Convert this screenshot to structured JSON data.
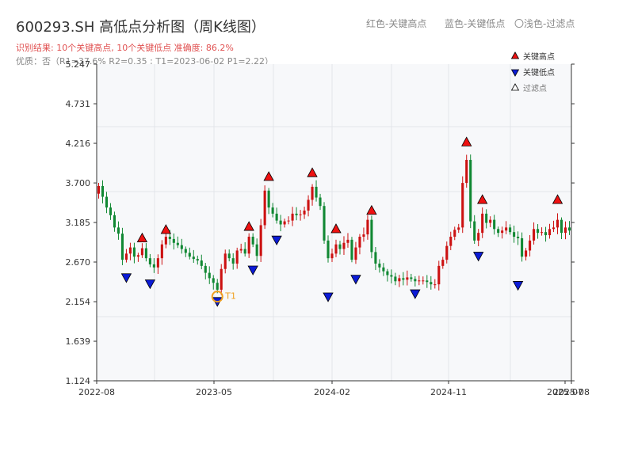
{
  "header": {
    "title": "600293.SH 高低点分析图（周K线图）",
    "subtitle": "识别结果: 10个关键高点, 10个关键低点   准确度: 86.2%",
    "quality": "优质：否（R1=37.6%  R2=0.35 ; T1=2023-06-02 P1=2.22）",
    "legend_red": "红色-关键高点",
    "legend_blue": "蓝色-关键低点",
    "legend_light": "〇浅色-过滤点"
  },
  "colors": {
    "up": "#cc1111",
    "down": "#118833",
    "high_marker": "#ee1111",
    "low_marker": "#0b1bd6",
    "t1_marker": "#f0a020",
    "plot_bg": "#f7f8fa",
    "grid": "#e3e6ea"
  },
  "chart_data": {
    "type": "candlestick",
    "interval": "weekly",
    "y_axis": {
      "ticks": [
        "1.124",
        "1.639",
        "2.154",
        "2.670",
        "3.185",
        "3.700",
        "4.216",
        "4.731",
        "5.247"
      ],
      "ylim": [
        1.124,
        5.247
      ]
    },
    "x_axis": {
      "ticks": [
        "2022-08",
        "2023-05",
        "2024-02",
        "2024-11",
        "2025-07",
        "2025-08"
      ]
    },
    "legend": {
      "position": "top-right",
      "items": [
        {
          "label": "关键高点",
          "marker": "triangle-up",
          "color": "red"
        },
        {
          "label": "关键低点",
          "marker": "triangle-down",
          "color": "blue"
        },
        {
          "label": "过滤点",
          "marker": "triangle-up-hollow",
          "color": "light"
        }
      ]
    },
    "key_highs": [
      {
        "week": 11,
        "price": 2.88
      },
      {
        "week": 17,
        "price": 2.99
      },
      {
        "week": 38,
        "price": 3.03
      },
      {
        "week": 43,
        "price": 3.68
      },
      {
        "week": 54,
        "price": 3.73
      },
      {
        "week": 60,
        "price": 3.0
      },
      {
        "week": 69,
        "price": 3.24
      },
      {
        "week": 93,
        "price": 4.13
      },
      {
        "week": 97,
        "price": 3.38
      },
      {
        "week": 116,
        "price": 3.38
      }
    ],
    "key_lows": [
      {
        "week": 7,
        "price": 2.57
      },
      {
        "week": 13,
        "price": 2.49
      },
      {
        "week": 30,
        "price": 2.26
      },
      {
        "week": 39,
        "price": 2.67
      },
      {
        "week": 45,
        "price": 3.06
      },
      {
        "week": 58,
        "price": 2.32
      },
      {
        "week": 65,
        "price": 2.55
      },
      {
        "week": 80,
        "price": 2.36
      },
      {
        "week": 96,
        "price": 2.85
      },
      {
        "week": 106,
        "price": 2.47
      }
    ],
    "t1_point": {
      "week": 30,
      "price": 2.22,
      "label": "T1"
    },
    "closes": [
      3.66,
      3.52,
      3.38,
      3.28,
      3.12,
      3.04,
      2.7,
      2.78,
      2.86,
      2.74,
      2.76,
      2.85,
      2.72,
      2.64,
      2.6,
      2.72,
      2.9,
      3.0,
      2.97,
      2.92,
      2.89,
      2.84,
      2.79,
      2.74,
      2.71,
      2.69,
      2.62,
      2.53,
      2.46,
      2.4,
      2.31,
      2.58,
      2.78,
      2.72,
      2.65,
      2.82,
      2.84,
      2.78,
      3.0,
      2.9,
      2.75,
      3.15,
      3.6,
      3.38,
      3.3,
      3.21,
      3.16,
      3.2,
      3.21,
      3.3,
      3.28,
      3.29,
      3.34,
      3.48,
      3.65,
      3.51,
      3.4,
      2.95,
      2.72,
      2.78,
      2.9,
      2.84,
      2.92,
      2.96,
      2.7,
      2.86,
      3.0,
      3.03,
      3.22,
      2.8,
      2.65,
      2.6,
      2.55,
      2.5,
      2.48,
      2.42,
      2.46,
      2.44,
      2.47,
      2.45,
      2.42,
      2.43,
      2.43,
      2.41,
      2.38,
      2.38,
      2.62,
      2.7,
      2.88,
      3.0,
      3.09,
      3.12,
      3.7,
      4.0,
      3.2,
      2.95,
      3.05,
      3.3,
      3.18,
      3.22,
      3.1,
      3.05,
      3.08,
      3.12,
      3.06,
      3.0,
      2.98,
      2.74,
      2.82,
      2.95,
      3.1,
      3.05,
      3.06,
      3.02,
      3.1,
      3.12,
      3.22,
      3.05,
      3.12,
      3.08
    ]
  }
}
